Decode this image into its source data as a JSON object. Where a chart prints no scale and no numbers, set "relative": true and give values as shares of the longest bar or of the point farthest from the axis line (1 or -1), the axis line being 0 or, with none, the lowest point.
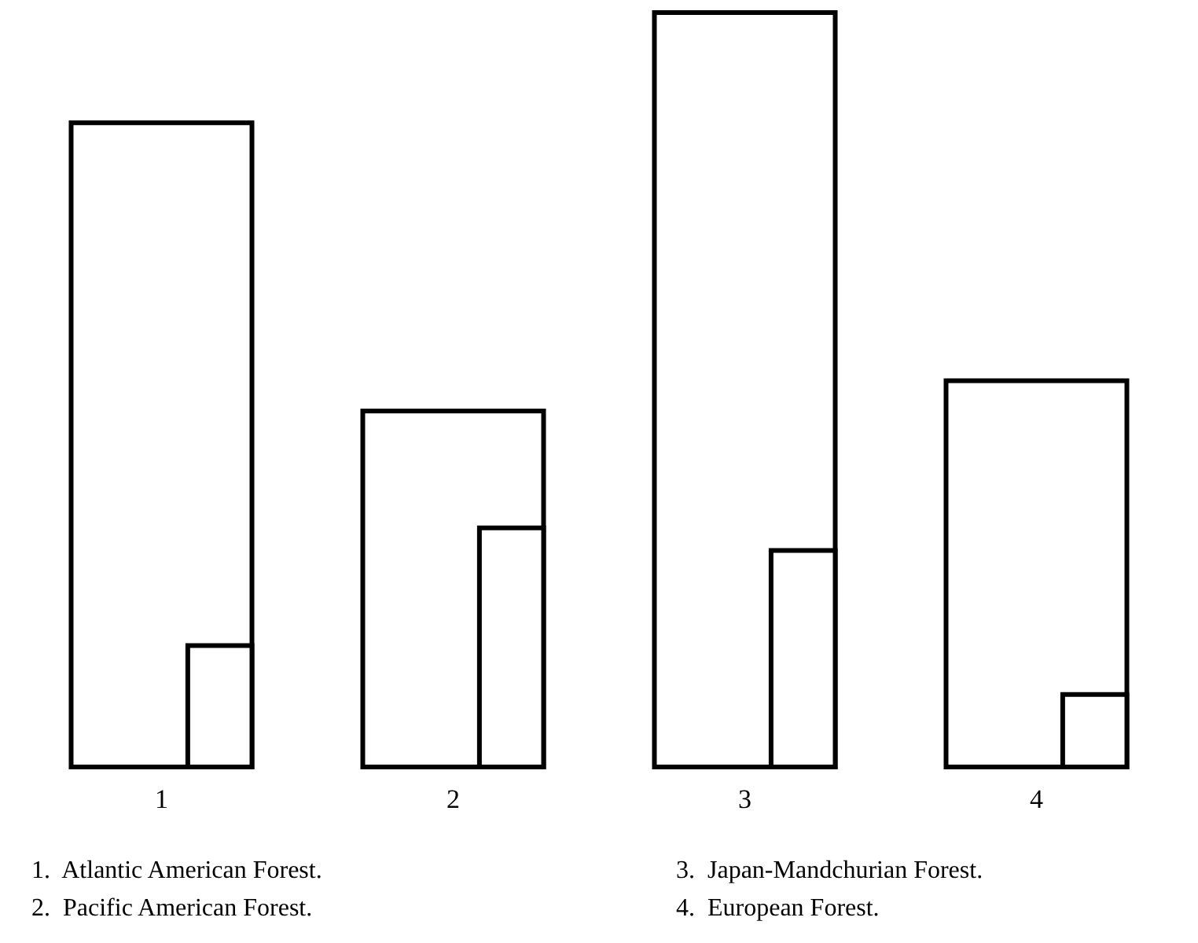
{
  "chart_data": {
    "type": "bar",
    "relative": true,
    "categories": [
      "1",
      "2",
      "3",
      "4"
    ],
    "series": [
      {
        "color": "#000000",
        "values": [
          0.854,
          0.472,
          1,
          0.512
        ]
      },
      {
        "color": "#000000",
        "values": [
          0.161,
          0.317,
          0.287,
          0.096
        ]
      }
    ],
    "annotations": [
      "1.  Atlantic American Forest.",
      "2.  Pacific American Forest.",
      "3.  Japan-Mandchurian Forest.",
      "4.  European Forest."
    ]
  }
}
